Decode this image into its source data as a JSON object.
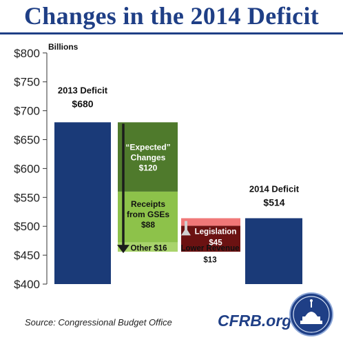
{
  "title": "Changes in the 2014 Deficit",
  "source": "Source: Congressional Budget Office",
  "brand": "CFRB.org",
  "chart_data": {
    "type": "bar",
    "subtype": "waterfall",
    "unit_label": "Billions",
    "ylim": [
      400,
      800
    ],
    "yticks": [
      "$400",
      "$450",
      "$500",
      "$550",
      "$600",
      "$650",
      "$700",
      "$750",
      "$800"
    ],
    "ytick_values": [
      400,
      450,
      500,
      550,
      600,
      650,
      700,
      750,
      800
    ],
    "bars": [
      {
        "id": "deficit-2013",
        "label": "2013 Deficit",
        "value_label": "$680",
        "from": 400,
        "to": 680,
        "color": "#1a3a78"
      },
      {
        "id": "expected-changes",
        "label": "“Expected” Changes",
        "value_label": "$120",
        "from": 680,
        "to": 560,
        "color": "#4f7a2c"
      },
      {
        "id": "receipts-gses",
        "label": "Receipts from GSEs",
        "value_label": "$88",
        "from": 560,
        "to": 472,
        "color": "#8dc24a"
      },
      {
        "id": "other",
        "label": "Other",
        "value_label": "$16",
        "from": 472,
        "to": 456,
        "color": "#a9d46c"
      },
      {
        "id": "legislation",
        "label": "Legislation",
        "value_label": "$45",
        "from": 456,
        "to": 501,
        "color": "#6b1212"
      },
      {
        "id": "lower-revenue",
        "label": "Lower Revenue",
        "value_label": "$13",
        "from": 501,
        "to": 514,
        "color": "#f07878"
      },
      {
        "id": "deficit-2014",
        "label": "2014 Deficit",
        "value_label": "$514",
        "from": 400,
        "to": 514,
        "color": "#1a3a78"
      }
    ],
    "grid": false
  }
}
